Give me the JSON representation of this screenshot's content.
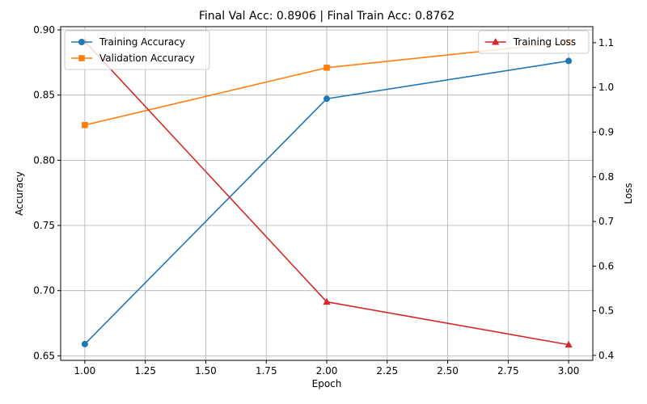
{
  "chart_data": {
    "type": "line",
    "title": "Final Val Acc: 0.8906 | Final Train Acc: 0.8762",
    "xlabel": "Epoch",
    "ylabel": "Accuracy",
    "y2label": "Loss",
    "xlim": [
      0.9,
      3.1
    ],
    "ylim": [
      0.6465,
      0.9025
    ],
    "y2lim": [
      0.389,
      1.136
    ],
    "x_ticks": [
      {
        "value": 1.0,
        "label": "1.00"
      },
      {
        "value": 1.25,
        "label": "1.25"
      },
      {
        "value": 1.5,
        "label": "1.50"
      },
      {
        "value": 1.75,
        "label": "1.75"
      },
      {
        "value": 2.0,
        "label": "2.00"
      },
      {
        "value": 2.25,
        "label": "2.25"
      },
      {
        "value": 2.5,
        "label": "2.50"
      },
      {
        "value": 2.75,
        "label": "2.75"
      },
      {
        "value": 3.0,
        "label": "3.00"
      }
    ],
    "y_ticks": [
      {
        "value": 0.65,
        "label": "0.65"
      },
      {
        "value": 0.7,
        "label": "0.70"
      },
      {
        "value": 0.75,
        "label": "0.75"
      },
      {
        "value": 0.8,
        "label": "0.80"
      },
      {
        "value": 0.85,
        "label": "0.85"
      },
      {
        "value": 0.9,
        "label": "0.90"
      }
    ],
    "y2_ticks": [
      {
        "value": 0.4,
        "label": "0.4"
      },
      {
        "value": 0.5,
        "label": "0.5"
      },
      {
        "value": 0.6,
        "label": "0.6"
      },
      {
        "value": 0.7,
        "label": "0.7"
      },
      {
        "value": 0.8,
        "label": "0.8"
      },
      {
        "value": 0.9,
        "label": "0.9"
      },
      {
        "value": 1.0,
        "label": "1.0"
      },
      {
        "value": 1.1,
        "label": "1.1"
      }
    ],
    "grid": true,
    "series": [
      {
        "name": "Training Accuracy",
        "axis": "left",
        "color": "#1f77b4",
        "marker": "circle",
        "x": [
          1,
          2,
          3
        ],
        "y": [
          0.659,
          0.8472,
          0.8762
        ]
      },
      {
        "name": "Validation Accuracy",
        "axis": "left",
        "color": "#ff7f0e",
        "marker": "square",
        "x": [
          1,
          2,
          3
        ],
        "y": [
          0.827,
          0.871,
          0.8906
        ]
      },
      {
        "name": "Training Loss",
        "axis": "right",
        "color": "#d62728",
        "marker": "triangle",
        "x": [
          1,
          2,
          3
        ],
        "y": [
          1.103,
          0.52,
          0.424
        ]
      }
    ],
    "legends": [
      {
        "placement": "upper-left",
        "entries": [
          "Training Accuracy",
          "Validation Accuracy"
        ]
      },
      {
        "placement": "upper-right",
        "entries": [
          "Training Loss"
        ]
      }
    ]
  }
}
